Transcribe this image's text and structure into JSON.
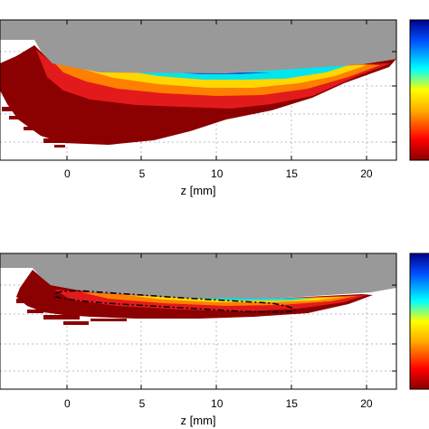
{
  "chart_data": [
    {
      "type": "heatmap",
      "xlabel": "z [mm]",
      "x_ticks": [
        0,
        5,
        10,
        15,
        20
      ],
      "xlim": [
        -4.5,
        22
      ],
      "grid": true,
      "colorbar": "jet (partial, right edge)",
      "colors": {
        "wall": "#999999",
        "outer": "#8b0000",
        "red": "#e31a1c",
        "orange": "#ff7f00",
        "yellow": "#ffd700",
        "cyan": "#00e5ee",
        "blue": "#1560d8"
      },
      "dashed_contour": false
    },
    {
      "type": "heatmap",
      "xlabel": "z [mm]",
      "x_ticks": [
        0,
        5,
        10,
        15,
        20
      ],
      "xlim": [
        -4.5,
        22
      ],
      "grid": true,
      "colorbar": "jet (partial, right edge)",
      "colors": {
        "wall": "#999999",
        "outer": "#8b0000",
        "red": "#e31a1c",
        "orange": "#ff7f00",
        "yellow": "#ffd700",
        "cyan": "#00e5ee",
        "blue": "#1560d8"
      },
      "dashed_contour": true
    }
  ]
}
